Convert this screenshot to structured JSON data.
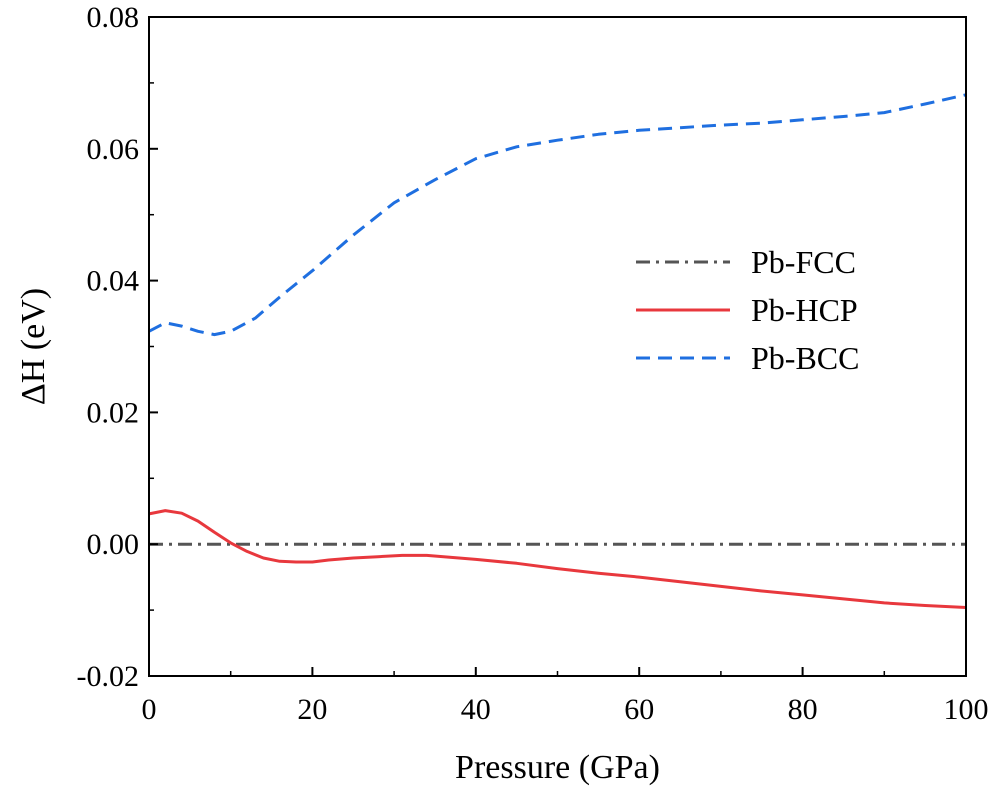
{
  "chart_data": {
    "type": "line",
    "xlabel": "Pressure (GPa)",
    "ylabel": "ΔH (eV)",
    "xlim": [
      0,
      100
    ],
    "ylim": [
      -0.02,
      0.08
    ],
    "xticks": [
      0,
      20,
      40,
      60,
      80,
      100
    ],
    "xtick_labels": [
      "0",
      "20",
      "40",
      "60",
      "80",
      "100"
    ],
    "yticks": [
      -0.02,
      0.0,
      0.02,
      0.04,
      0.06,
      0.08
    ],
    "ytick_labels": [
      "-0.02",
      "0.00",
      "0.02",
      "0.04",
      "0.06",
      "0.08"
    ],
    "grid": false,
    "legend_position": "right",
    "series": [
      {
        "name": "Pb-FCC",
        "color": "#555555",
        "style": "dash-dot",
        "x": [
          0,
          100
        ],
        "y": [
          0.0,
          0.0
        ]
      },
      {
        "name": "Pb-HCP",
        "color": "#e8383d",
        "style": "solid",
        "x": [
          0,
          2,
          4,
          6,
          8,
          10,
          12,
          14,
          16,
          18,
          20,
          22,
          25,
          28,
          31,
          34,
          37,
          40,
          45,
          50,
          55,
          60,
          65,
          70,
          75,
          80,
          85,
          90,
          95,
          100
        ],
        "y": [
          0.0046,
          0.0051,
          0.0047,
          0.0035,
          0.0018,
          0.0002,
          -0.0011,
          -0.0021,
          -0.0026,
          -0.0027,
          -0.0027,
          -0.0024,
          -0.0021,
          -0.0019,
          -0.0017,
          -0.0017,
          -0.002,
          -0.0023,
          -0.0029,
          -0.0037,
          -0.0044,
          -0.005,
          -0.0057,
          -0.0064,
          -0.0071,
          -0.0077,
          -0.0083,
          -0.0089,
          -0.0093,
          -0.0096
        ]
      },
      {
        "name": "Pb-BCC",
        "color": "#1f6fe0",
        "style": "dashed",
        "x": [
          0,
          2,
          4,
          6,
          8,
          10,
          13,
          16,
          20,
          25,
          30,
          35,
          40,
          45,
          50,
          55,
          60,
          65,
          70,
          75,
          80,
          85,
          90,
          95,
          100
        ],
        "y": [
          0.0323,
          0.0336,
          0.0331,
          0.0323,
          0.0318,
          0.0323,
          0.0343,
          0.0375,
          0.0415,
          0.0469,
          0.0518,
          0.0553,
          0.0585,
          0.0603,
          0.0613,
          0.0622,
          0.0628,
          0.0632,
          0.0636,
          0.0639,
          0.0644,
          0.0649,
          0.0655,
          0.0668,
          0.0682
        ]
      }
    ]
  }
}
